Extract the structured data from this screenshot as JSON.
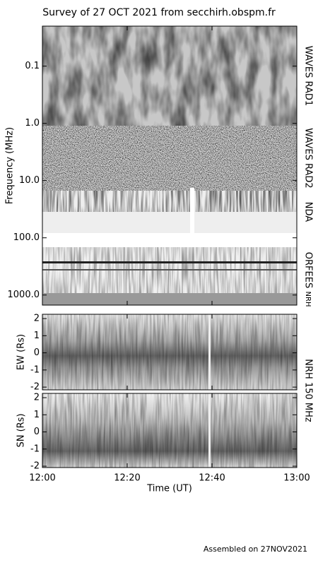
{
  "footer": "Assembled on 27NOV2021",
  "chart_data": [
    {
      "type": "heatmap",
      "title": "Survey of 27 OCT 2021 from secchirh.obspm.fr",
      "ylabel": "Frequency (MHz)",
      "log_scale": true,
      "ylim": [
        0.02,
        1500
      ],
      "yticks": [
        {
          "value": 0.1,
          "label": "0.1"
        },
        {
          "value": 1,
          "label": "1.0"
        },
        {
          "value": 10,
          "label": "10.0"
        },
        {
          "value": 100,
          "label": "100.0"
        },
        {
          "value": 1000,
          "label": "1000.0"
        }
      ],
      "instruments": [
        "WAVES RAD1",
        "WAVES RAD2",
        "NDA",
        "ORFEES",
        "NRH"
      ]
    },
    {
      "type": "heatmap",
      "ylabel": "EW (Rs)",
      "instrument": "NRH 150 MHz",
      "ylim": [
        -2.16,
        2.25
      ],
      "yticks": [
        -2,
        -1,
        0,
        1,
        2
      ]
    },
    {
      "type": "heatmap",
      "ylabel": "SN (Rs)",
      "ylim": [
        -2.08,
        2.25
      ],
      "yticks": [
        -2,
        -1,
        0,
        1,
        2
      ],
      "xlabel": "Time (UT)",
      "xlim": [
        0,
        60
      ],
      "xticks": [
        {
          "value": 0,
          "label": "12:00"
        },
        {
          "value": 20,
          "label": "12:20"
        },
        {
          "value": 40,
          "label": "12:40"
        },
        {
          "value": 60,
          "label": "13:00"
        }
      ]
    }
  ]
}
